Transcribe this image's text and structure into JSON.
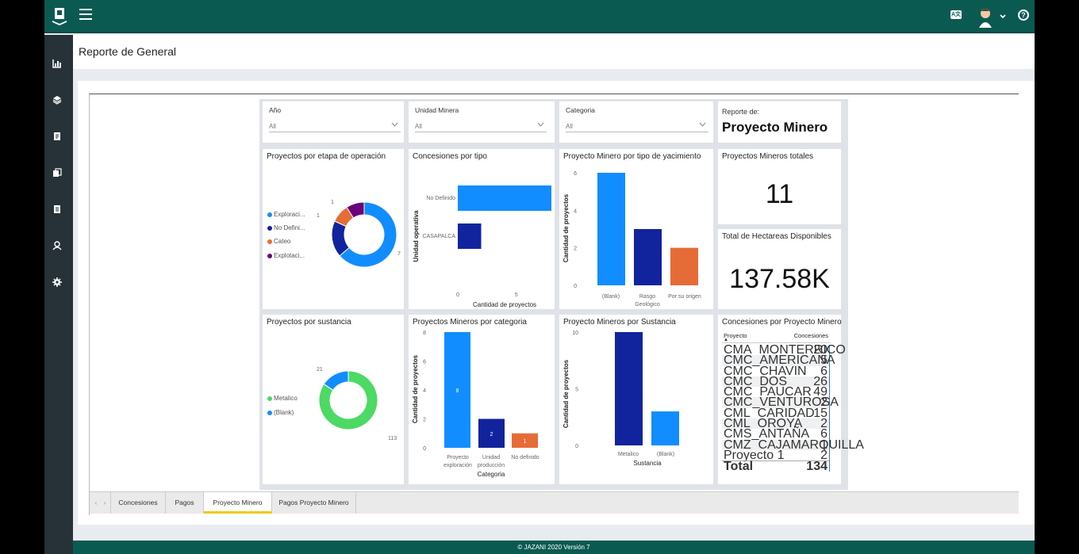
{
  "app": {
    "header_title": "Reporte de General",
    "footer": "© JAZANI 2020 Versión 7",
    "lang_badge": "A文"
  },
  "filters": [
    {
      "label": "Año",
      "value": "All"
    },
    {
      "label": "Unidad Minera",
      "value": "All"
    },
    {
      "label": "Categoria",
      "value": "All"
    }
  ],
  "reporte": {
    "label": "Reporte de:",
    "value": "Proyecto Minero"
  },
  "kpi": {
    "total_label": "Proyectos Mineros totales",
    "total_value": "11",
    "hect_label": "Total de Hectareas Disponibles",
    "hect_value": "137.58K"
  },
  "etapa": {
    "title": "Proyectos por etapa de operación",
    "legend": [
      "Exploraci...",
      "No Defini...",
      "Cateo",
      "Explotaci..."
    ],
    "labels": [
      "1",
      "1",
      "2",
      "7"
    ],
    "colors": [
      "#118dff",
      "#12239e",
      "#e66c37",
      "#6b007b"
    ]
  },
  "concesiones": {
    "title": "Concesiones por tipo",
    "ylabel": "Unidad operativa",
    "xlabel": "Cantidad de proyectos",
    "ticks": [
      "0",
      "5"
    ],
    "cat1": "No Definido",
    "cat2": "CASAPALCA"
  },
  "yacimiento": {
    "title": "Proyecto Minero por tipo de yacimiento",
    "ylabel": "Cantidad de proyectos",
    "ticks": [
      "0",
      "2",
      "4",
      "6"
    ],
    "cat1": "(Blank)",
    "cat2a": "Rasgo",
    "cat2b": "Geológico",
    "cat3": "Por su origen"
  },
  "sustancia_donut": {
    "title": "Proyectos por sustancia",
    "legend": [
      "Metalico",
      "(Blank)"
    ],
    "labels": [
      "21",
      "113"
    ],
    "colors": [
      "#4cd964",
      "#118dff"
    ]
  },
  "categoria": {
    "title": "Proyectos Mineros por categoria",
    "ylabel": "Cantidad de proyectos",
    "xlabel": "Categoria",
    "ticks": [
      "0",
      "2",
      "4",
      "6",
      "8"
    ],
    "cat1a": "Proyecto",
    "cat1b": "exploración",
    "cat2a": "Unidad",
    "cat2b": "producción",
    "cat3": "No definido",
    "v1": "8",
    "v2": "2",
    "v3": "1"
  },
  "sustancia_bar": {
    "title": "Proyecto Mineros por Sustancia",
    "ylabel": "Cantidad de proyectos",
    "xlabel": "Sustancia",
    "ticks": [
      "0",
      "5",
      "10"
    ],
    "cat1": "Metalico",
    "cat2": "(Blank)"
  },
  "table": {
    "title": "Concesiones por Proyecto Minero",
    "col1": "Proyecto",
    "col2": "Concesiones",
    "rows": [
      {
        "p": "CMA_MONTERRICO",
        "c": "20"
      },
      {
        "p": "CMC_AMERICANA",
        "c": "5"
      },
      {
        "p": "CMC_CHAVIN",
        "c": "6"
      },
      {
        "p": "CMC_DOS NACIONES",
        "c": "26"
      },
      {
        "p": "CMC_PAUCAR",
        "c": "49"
      },
      {
        "p": "CMC_VENTUROSA",
        "c": "2"
      },
      {
        "p": "CML_CARIDAD",
        "c": "15"
      },
      {
        "p": "CML_OROYA SUR",
        "c": "2"
      },
      {
        "p": "CMS_ANTAÑA",
        "c": "6"
      },
      {
        "p": "CMZ_CAJAMARQUILLA",
        "c": "1"
      },
      {
        "p": "Proyecto 1",
        "c": "2"
      }
    ],
    "total_label": "Total",
    "total_value": "134"
  },
  "tabs": [
    "Concesiones",
    "Pagos",
    "Proyecto Minero",
    "Pagos Proyecto Minero"
  ],
  "chart_data": [
    {
      "type": "pie",
      "title": "Proyectos por etapa de operación",
      "categories": [
        "Exploración",
        "No Definido",
        "Cateo",
        "Explotación"
      ],
      "values": [
        7,
        2,
        1,
        1
      ]
    },
    {
      "type": "bar",
      "title": "Concesiones por tipo",
      "categories": [
        "No Definido",
        "CASAPALCA"
      ],
      "values": [
        8,
        2
      ],
      "xlabel": "Cantidad de proyectos",
      "ylabel": "Unidad operativa"
    },
    {
      "type": "bar",
      "title": "Proyecto Minero por tipo de yacimiento",
      "categories": [
        "(Blank)",
        "Rasgo Geológico",
        "Por su origen"
      ],
      "values": [
        6,
        3,
        2
      ],
      "ylabel": "Cantidad de proyectos",
      "ylim": [
        0,
        6
      ]
    },
    {
      "type": "pie",
      "title": "Proyectos por sustancia",
      "categories": [
        "Metalico",
        "(Blank)"
      ],
      "values": [
        113,
        21
      ]
    },
    {
      "type": "bar",
      "title": "Proyectos Mineros por categoria",
      "categories": [
        "Proyecto exploración",
        "Unidad producción",
        "No definido"
      ],
      "values": [
        8,
        2,
        1
      ],
      "xlabel": "Categoria",
      "ylabel": "Cantidad de proyectos",
      "ylim": [
        0,
        8
      ]
    },
    {
      "type": "bar",
      "title": "Proyecto Mineros por Sustancia",
      "categories": [
        "Metalico",
        "(Blank)"
      ],
      "values": [
        10,
        3
      ],
      "xlabel": "Sustancia",
      "ylabel": "Cantidad de proyectos",
      "ylim": [
        0,
        10
      ]
    }
  ]
}
